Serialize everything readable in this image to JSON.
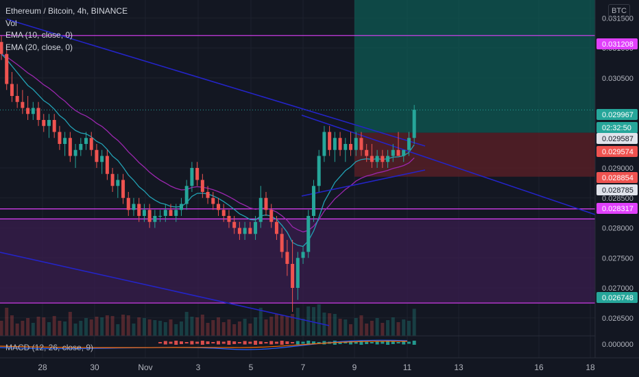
{
  "legend": {
    "symbol": "Ethereum / Bitcoin, 4h, BINANCE",
    "vol": "Vol",
    "ema10": "EMA (10, close, 0)",
    "ema20": "EMA (20, close, 0)",
    "macd": "MACD (12, 26, close, 9)"
  },
  "currency_badge": "BTC",
  "colors": {
    "background": "#131722",
    "up": "#26a69a",
    "down": "#ef5350",
    "ema10": "#22a3b6",
    "ema20": "#9c27b0",
    "trendline": "#2424c8",
    "level": "#e040fb",
    "target_zone": "#0e5a53",
    "stop_zone": "#5a1f27",
    "range_zone": "#3a1d4d"
  },
  "chart_data": {
    "type": "candlestick",
    "title": "Ethereum / Bitcoin, 4h, BINANCE",
    "timeframe": "4h",
    "exchange": "BINANCE",
    "x_tick_labels": [
      "28",
      "30",
      "Nov",
      "3",
      "5",
      "7",
      "9",
      "11",
      "13",
      "16",
      "18"
    ],
    "y_tick_labels": [
      "0.031500",
      "0.031000",
      "0.030500",
      "0.029000",
      "0.028500",
      "0.028000",
      "0.027500",
      "0.027000",
      "0.026500"
    ],
    "ylim": [
      0.0262,
      0.0318
    ],
    "price_tags": [
      {
        "value": "0.031208",
        "bg": "#e040fb",
        "fg": "#ffffff"
      },
      {
        "value": "0.029967",
        "bg": "#26a69a",
        "fg": "#ffffff"
      },
      {
        "value": "02:32:50",
        "bg": "#26a69a",
        "fg": "#ffffff"
      },
      {
        "value": "0.029587",
        "bg": "#e0e3eb",
        "fg": "#131722"
      },
      {
        "value": "0.029574",
        "bg": "#ef5350",
        "fg": "#ffffff"
      },
      {
        "value": "0.028854",
        "bg": "#ef5350",
        "fg": "#ffffff"
      },
      {
        "value": "0.028785",
        "bg": "#e0e3eb",
        "fg": "#131722"
      },
      {
        "value": "0.028317",
        "bg": "#e040fb",
        "fg": "#ffffff"
      },
      {
        "value": "0.026748",
        "bg": "#26a69a",
        "fg": "#ffffff"
      }
    ],
    "horizontal_levels": [
      0.031208,
      0.028317,
      0.02815,
      0.026748
    ],
    "position": {
      "entry": 0.029587,
      "target": 0.0318,
      "stop": 0.028854
    },
    "candles": [
      [
        0.0311,
        0.0312,
        0.0308,
        0.0309
      ],
      [
        0.0309,
        0.031,
        0.0303,
        0.0304
      ],
      [
        0.0304,
        0.0306,
        0.0301,
        0.0302
      ],
      [
        0.0302,
        0.0304,
        0.03,
        0.0301
      ],
      [
        0.0301,
        0.0303,
        0.0299,
        0.03
      ],
      [
        0.03,
        0.0302,
        0.0298,
        0.0299
      ],
      [
        0.0299,
        0.0301,
        0.0298,
        0.03
      ],
      [
        0.03,
        0.0301,
        0.0297,
        0.0298
      ],
      [
        0.0298,
        0.0299,
        0.0296,
        0.0297
      ],
      [
        0.0297,
        0.0299,
        0.0295,
        0.0298
      ],
      [
        0.0298,
        0.0299,
        0.0295,
        0.0296
      ],
      [
        0.0296,
        0.0297,
        0.0293,
        0.0294
      ],
      [
        0.0294,
        0.0296,
        0.0292,
        0.0295
      ],
      [
        0.0295,
        0.0296,
        0.0291,
        0.0292
      ],
      [
        0.0292,
        0.0294,
        0.029,
        0.0293
      ],
      [
        0.0293,
        0.0295,
        0.0292,
        0.0294
      ],
      [
        0.0294,
        0.0296,
        0.0293,
        0.0295
      ],
      [
        0.0295,
        0.0296,
        0.0292,
        0.0293
      ],
      [
        0.0293,
        0.0294,
        0.029,
        0.0291
      ],
      [
        0.0291,
        0.0293,
        0.0289,
        0.0292
      ],
      [
        0.0292,
        0.0293,
        0.0288,
        0.0289
      ],
      [
        0.0289,
        0.029,
        0.0286,
        0.0287
      ],
      [
        0.0287,
        0.0289,
        0.0285,
        0.0288
      ],
      [
        0.0288,
        0.0289,
        0.0284,
        0.0285
      ],
      [
        0.0285,
        0.0286,
        0.0282,
        0.0283
      ],
      [
        0.0283,
        0.0285,
        0.0282,
        0.0284
      ],
      [
        0.0284,
        0.0285,
        0.0281,
        0.0282
      ],
      [
        0.0282,
        0.0284,
        0.0281,
        0.0283
      ],
      [
        0.0283,
        0.0284,
        0.028,
        0.0281
      ],
      [
        0.0281,
        0.0283,
        0.028,
        0.0282
      ],
      [
        0.0282,
        0.0283,
        0.0281,
        0.0282
      ],
      [
        0.0282,
        0.0284,
        0.0281,
        0.0283
      ],
      [
        0.0283,
        0.0284,
        0.0282,
        0.0282
      ],
      [
        0.0282,
        0.0284,
        0.0281,
        0.0283
      ],
      [
        0.0283,
        0.0285,
        0.0282,
        0.0284
      ],
      [
        0.0284,
        0.0288,
        0.0283,
        0.0287
      ],
      [
        0.0287,
        0.0291,
        0.0286,
        0.029
      ],
      [
        0.029,
        0.0291,
        0.0287,
        0.0288
      ],
      [
        0.0288,
        0.0289,
        0.0285,
        0.0286
      ],
      [
        0.0286,
        0.0287,
        0.0284,
        0.0285
      ],
      [
        0.0285,
        0.0286,
        0.0283,
        0.0284
      ],
      [
        0.0284,
        0.0285,
        0.0282,
        0.0283
      ],
      [
        0.0283,
        0.0284,
        0.0281,
        0.0282
      ],
      [
        0.0282,
        0.0283,
        0.028,
        0.0281
      ],
      [
        0.0281,
        0.0282,
        0.0279,
        0.028
      ],
      [
        0.028,
        0.0281,
        0.0278,
        0.0279
      ],
      [
        0.0279,
        0.0281,
        0.0278,
        0.028
      ],
      [
        0.028,
        0.0281,
        0.0279,
        0.0279
      ],
      [
        0.0279,
        0.0282,
        0.0278,
        0.0281
      ],
      [
        0.0281,
        0.0287,
        0.028,
        0.0285
      ],
      [
        0.0285,
        0.0286,
        0.0282,
        0.0283
      ],
      [
        0.0283,
        0.0284,
        0.028,
        0.0281
      ],
      [
        0.0281,
        0.0282,
        0.0278,
        0.0279
      ],
      [
        0.0279,
        0.028,
        0.0275,
        0.0276
      ],
      [
        0.0276,
        0.0278,
        0.0272,
        0.0274
      ],
      [
        0.0274,
        0.0278,
        0.0266,
        0.027
      ],
      [
        0.027,
        0.0276,
        0.0268,
        0.0275
      ],
      [
        0.0275,
        0.0277,
        0.0274,
        0.0276
      ],
      [
        0.0276,
        0.0283,
        0.0275,
        0.0282
      ],
      [
        0.0282,
        0.0288,
        0.0281,
        0.0287
      ],
      [
        0.0287,
        0.0293,
        0.0286,
        0.0292
      ],
      [
        0.0292,
        0.0297,
        0.0291,
        0.0296
      ],
      [
        0.0296,
        0.0297,
        0.0292,
        0.0293
      ],
      [
        0.0293,
        0.0296,
        0.0291,
        0.0295
      ],
      [
        0.0295,
        0.0296,
        0.0292,
        0.0293
      ],
      [
        0.0293,
        0.0295,
        0.0291,
        0.0294
      ],
      [
        0.0294,
        0.0296,
        0.0292,
        0.0293
      ],
      [
        0.0293,
        0.0296,
        0.0292,
        0.0295
      ],
      [
        0.0295,
        0.0296,
        0.0292,
        0.0293
      ],
      [
        0.0293,
        0.0294,
        0.0291,
        0.0292
      ],
      [
        0.0292,
        0.0294,
        0.029,
        0.0291
      ],
      [
        0.0291,
        0.0293,
        0.029,
        0.0292
      ],
      [
        0.0292,
        0.0293,
        0.029,
        0.0291
      ],
      [
        0.0291,
        0.0293,
        0.029,
        0.0292
      ],
      [
        0.0292,
        0.0294,
        0.0291,
        0.0293
      ],
      [
        0.0293,
        0.0296,
        0.0292,
        0.0292
      ],
      [
        0.0292,
        0.0293,
        0.0291,
        0.0293
      ],
      [
        0.0293,
        0.0296,
        0.0292,
        0.0295
      ],
      [
        0.0295,
        0.03005,
        0.0294,
        0.02997
      ]
    ]
  }
}
